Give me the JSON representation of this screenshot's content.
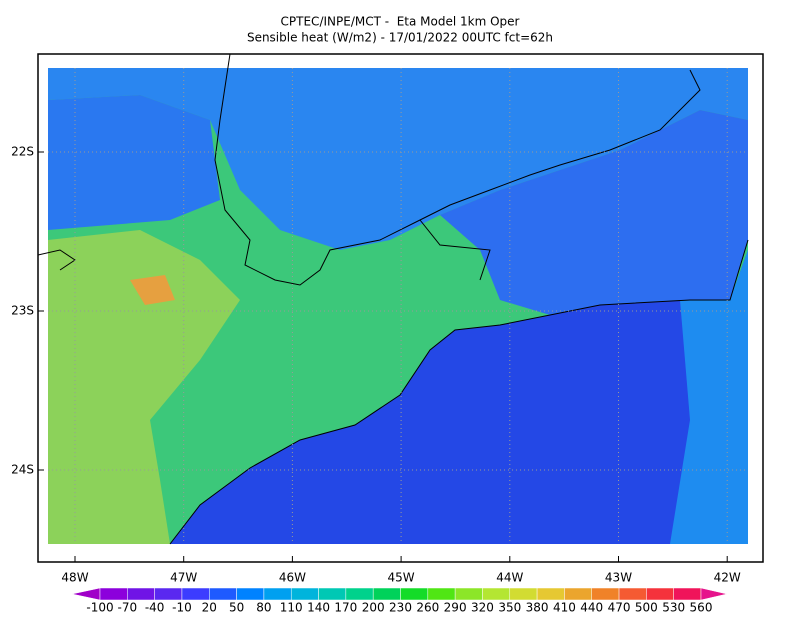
{
  "title": [
    "CPTEC/INPE/MCT -  Eta Model 1km Oper",
    "Sensible heat (W/m2) - 17/01/2022 00UTC fct=62h"
  ],
  "lat_labels": [
    "22S",
    "23S",
    "24S"
  ],
  "lon_labels": [
    "48W",
    "47W",
    "46W",
    "45W",
    "44W",
    "43W",
    "42W"
  ],
  "colorbar": {
    "labels": [
      -100,
      -70,
      -40,
      -10,
      20,
      50,
      80,
      110,
      140,
      170,
      200,
      230,
      260,
      290,
      320,
      350,
      380,
      410,
      440,
      470,
      500,
      530,
      560
    ],
    "colors": [
      "#a000c8",
      "#8c00dc",
      "#7014e6",
      "#5a28f0",
      "#3c3cff",
      "#1e5aff",
      "#0082ff",
      "#00a0f0",
      "#00b4dc",
      "#00c8b4",
      "#00d28c",
      "#00d25a",
      "#14dc28",
      "#50e614",
      "#8ce628",
      "#b4e632",
      "#d2dc32",
      "#e6c832",
      "#eba52d",
      "#f08228",
      "#f55a32",
      "#f5323c",
      "#f0145a",
      "#e6148c"
    ]
  }
}
